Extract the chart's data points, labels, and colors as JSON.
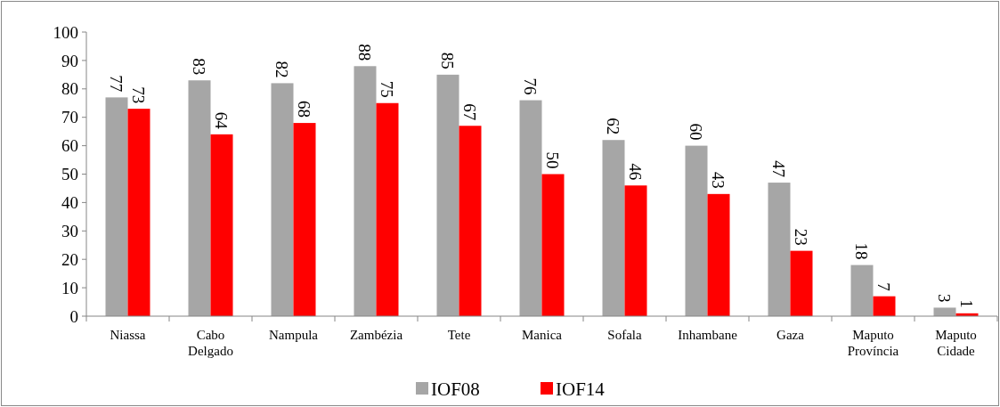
{
  "chart_data": {
    "type": "bar",
    "categories": [
      "Niassa",
      "Cabo Delgado",
      "Nampula",
      "Zambézia",
      "Tete",
      "Manica",
      "Sofala",
      "Inhambane",
      "Gaza",
      "Maputo Província",
      "Maputo Cidade"
    ],
    "series": [
      {
        "name": "IOF08",
        "color": "#a6a6a6",
        "values": [
          77,
          83,
          82,
          88,
          85,
          76,
          62,
          60,
          47,
          18,
          3
        ]
      },
      {
        "name": "IOF14",
        "color": "#ff0000",
        "values": [
          73,
          64,
          68,
          75,
          67,
          50,
          46,
          43,
          23,
          7,
          1
        ]
      }
    ],
    "ylim": [
      0,
      100
    ],
    "yticks": [
      0,
      10,
      20,
      30,
      40,
      50,
      60,
      70,
      80,
      90,
      100
    ],
    "data_labels": true,
    "legend": "bottom",
    "grid": false
  }
}
